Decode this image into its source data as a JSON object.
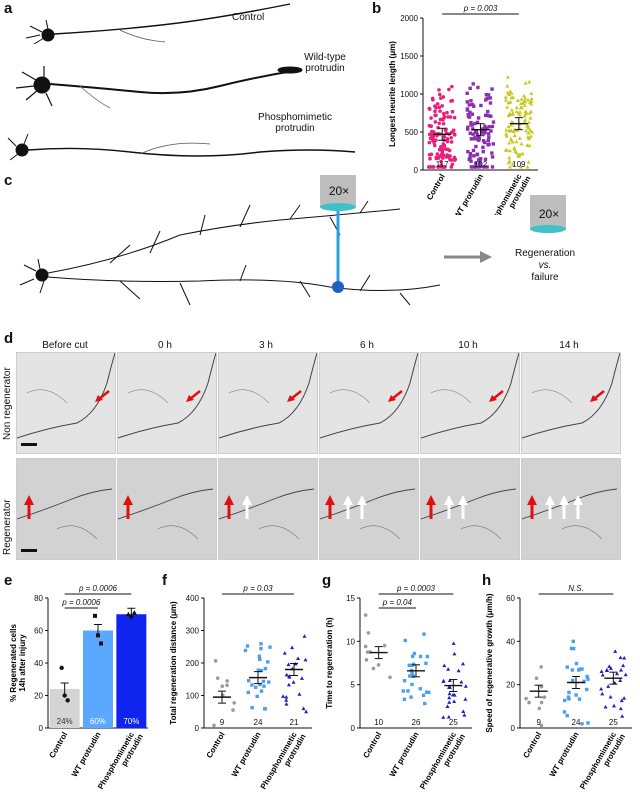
{
  "panel_a": {
    "letter": "a",
    "labels": [
      "Control",
      "Wild-type\nprotrudin",
      "Phosphomimetic\nprotrudin"
    ]
  },
  "panel_c": {
    "letter": "c",
    "objective": "20×",
    "objective_right": "20×",
    "outcome_line1": "Regeneration",
    "outcome_line2": "vs.",
    "outcome_line3": "failure"
  },
  "panel_d": {
    "letter": "d",
    "timepoints": [
      "Before cut",
      "0 h",
      "3 h",
      "6 h",
      "10 h",
      "14 h"
    ],
    "row1": "Non regenerator",
    "row2": "Regenerator",
    "red_arrow_color": "#e01010",
    "white_arrow_color": "#ffffff"
  },
  "chart_data": [
    {
      "panel": "b",
      "type": "scatter",
      "ylabel": "Longest neurite length (μm)",
      "ylim": [
        0,
        2000
      ],
      "yticks": [
        0,
        500,
        1000,
        1500,
        2000
      ],
      "categories": [
        "Control",
        "WT protrudin",
        "Phosphomimetic protrudin"
      ],
      "colors": [
        "#e8207a",
        "#8b2fb0",
        "#c8c81a"
      ],
      "means": [
        470,
        530,
        610
      ],
      "n": [
        "117",
        "102",
        "109"
      ],
      "significance": [
        {
          "from": 0,
          "to": 2,
          "label": "p = 0.003"
        }
      ]
    },
    {
      "panel": "e",
      "type": "bar",
      "ylabel": "% Regenerated cells\n14h after injury",
      "ylim": [
        0,
        80
      ],
      "yticks": [
        0,
        20,
        40,
        60,
        80
      ],
      "categories": [
        "Control",
        "WT protrudin",
        "Phosphomimetic protrudin"
      ],
      "values": [
        24,
        60,
        70
      ],
      "bar_labels": [
        "24%",
        "60%",
        "70%"
      ],
      "colors": [
        "#d4d4d4",
        "#5aa8ff",
        "#1024f0"
      ],
      "points": [
        [
          37,
          20,
          17
        ],
        [
          69,
          57,
          52
        ],
        [
          70,
          69,
          71
        ]
      ],
      "significance": [
        {
          "from": 0,
          "to": 2,
          "label": "p = 0.0006"
        },
        {
          "from": 0,
          "to": 1,
          "label": "p = 0.0006"
        }
      ]
    },
    {
      "panel": "f",
      "type": "scatter",
      "ylabel": "Total regeneration distance (μm)",
      "ylim": [
        0,
        400
      ],
      "yticks": [
        0,
        100,
        200,
        300,
        400
      ],
      "categories": [
        "Control",
        "WT protrudin",
        "Phosphomimetic protrudin"
      ],
      "colors": [
        "#9a9a9a",
        "#4aa0ee",
        "#2020c0"
      ],
      "means": [
        95,
        155,
        180
      ],
      "n": [
        "9",
        "24",
        "21"
      ],
      "significance": [
        {
          "from": 0,
          "to": 2,
          "label": "p = 0.03"
        }
      ]
    },
    {
      "panel": "g",
      "type": "scatter",
      "ylabel": "Time to regeneration (h)",
      "ylim": [
        0,
        15
      ],
      "yticks": [
        0,
        5,
        10,
        15
      ],
      "categories": [
        "Control",
        "WT protrudin",
        "Phosphomimetic protrudin"
      ],
      "colors": [
        "#9a9a9a",
        "#4aa0ee",
        "#2020c0"
      ],
      "means": [
        8.7,
        6.6,
        4.9
      ],
      "n": [
        "10",
        "26",
        "25"
      ],
      "significance": [
        {
          "from": 0,
          "to": 2,
          "label": "p = 0.0003"
        },
        {
          "from": 0,
          "to": 1,
          "label": "p = 0.04"
        }
      ]
    },
    {
      "panel": "h",
      "type": "scatter",
      "ylabel": "Speed of regenerative growth (μm/h)",
      "ylim": [
        0,
        60
      ],
      "yticks": [
        0,
        20,
        40,
        60
      ],
      "categories": [
        "Control",
        "WT protrudin",
        "Phosphomimetic protrudin"
      ],
      "colors": [
        "#9a9a9a",
        "#4aa0ee",
        "#2020c0"
      ],
      "means": [
        17,
        21,
        23
      ],
      "n": [
        "9",
        "24",
        "25"
      ],
      "significance": [
        {
          "from": 0,
          "to": 2,
          "label": "N.S."
        }
      ]
    }
  ]
}
